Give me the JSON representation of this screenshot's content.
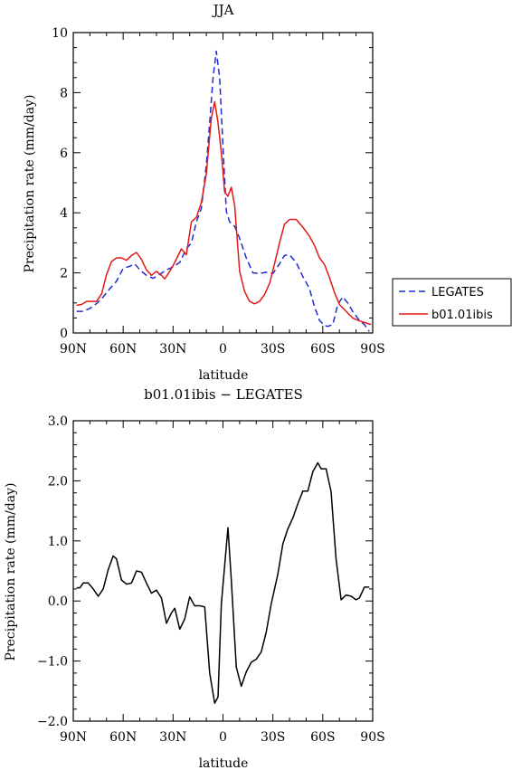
{
  "chart_data": [
    {
      "type": "line",
      "title": "JJA",
      "xlabel": "latitude",
      "ylabel": "Precipitation rate (mm/day)",
      "xlim": [
        90,
        -90
      ],
      "ylim": [
        0,
        10
      ],
      "x_ticks": [
        90,
        60,
        30,
        0,
        -30,
        -60,
        -90
      ],
      "x_tick_labels": [
        "90N",
        "60N",
        "30N",
        "0",
        "30S",
        "60S",
        "90S"
      ],
      "y_ticks": [
        0,
        2,
        4,
        6,
        8,
        10
      ],
      "y_tick_labels": [
        "0",
        "2",
        "4",
        "6",
        "8",
        "10"
      ],
      "legend_position": "right",
      "series": [
        {
          "name": "LEGATES",
          "color": "#1f2bd4",
          "dash": "dashed",
          "points": [
            [
              88,
              0.72
            ],
            [
              84,
              0.72
            ],
            [
              80,
              0.82
            ],
            [
              76,
              0.98
            ],
            [
              72,
              1.2
            ],
            [
              68,
              1.48
            ],
            [
              64,
              1.72
            ],
            [
              60,
              2.15
            ],
            [
              56,
              2.22
            ],
            [
              53,
              2.3
            ],
            [
              50,
              2.1
            ],
            [
              46,
              1.92
            ],
            [
              42,
              1.82
            ],
            [
              38,
              1.95
            ],
            [
              34,
              2.1
            ],
            [
              30,
              2.2
            ],
            [
              26,
              2.35
            ],
            [
              22,
              2.8
            ],
            [
              19,
              3.0
            ],
            [
              16,
              3.7
            ],
            [
              13,
              4.15
            ],
            [
              10,
              5.6
            ],
            [
              8,
              7.0
            ],
            [
              6,
              8.5
            ],
            [
              4,
              9.38
            ],
            [
              2,
              8.5
            ],
            [
              0,
              6.2
            ],
            [
              -2,
              4.05
            ],
            [
              -4,
              3.7
            ],
            [
              -7,
              3.55
            ],
            [
              -10,
              3.15
            ],
            [
              -14,
              2.5
            ],
            [
              -18,
              2.0
            ],
            [
              -22,
              1.98
            ],
            [
              -26,
              2.02
            ],
            [
              -30,
              1.98
            ],
            [
              -34,
              2.3
            ],
            [
              -37,
              2.58
            ],
            [
              -40,
              2.6
            ],
            [
              -44,
              2.35
            ],
            [
              -48,
              1.88
            ],
            [
              -52,
              1.48
            ],
            [
              -55,
              0.88
            ],
            [
              -58,
              0.42
            ],
            [
              -61,
              0.25
            ],
            [
              -63,
              0.22
            ],
            [
              -66,
              0.28
            ],
            [
              -69,
              0.95
            ],
            [
              -72,
              1.2
            ],
            [
              -75,
              1.0
            ],
            [
              -78,
              0.72
            ],
            [
              -82,
              0.42
            ],
            [
              -85,
              0.28
            ],
            [
              -88,
              0.05
            ]
          ]
        },
        {
          "name": "b01.01ibis",
          "color": "#e11919",
          "dash": "solid",
          "points": [
            [
              88,
              0.92
            ],
            [
              85,
              0.95
            ],
            [
              82,
              1.05
            ],
            [
              79,
              1.05
            ],
            [
              76,
              1.05
            ],
            [
              73,
              1.3
            ],
            [
              70,
              1.95
            ],
            [
              67,
              2.38
            ],
            [
              64,
              2.5
            ],
            [
              61,
              2.5
            ],
            [
              58,
              2.42
            ],
            [
              55,
              2.58
            ],
            [
              52,
              2.68
            ],
            [
              49,
              2.45
            ],
            [
              46,
              2.1
            ],
            [
              43,
              1.92
            ],
            [
              40,
              2.05
            ],
            [
              37,
              1.92
            ],
            [
              35,
              1.8
            ],
            [
              32,
              2.05
            ],
            [
              29,
              2.35
            ],
            [
              25,
              2.8
            ],
            [
              22,
              2.6
            ],
            [
              19,
              3.7
            ],
            [
              16,
              3.85
            ],
            [
              13,
              4.35
            ],
            [
              10,
              5.3
            ],
            [
              7,
              7.15
            ],
            [
              5,
              7.7
            ],
            [
              3,
              7.0
            ],
            [
              1,
              6.0
            ],
            [
              -1,
              4.7
            ],
            [
              -3,
              4.55
            ],
            [
              -5,
              4.85
            ],
            [
              -7,
              4.25
            ],
            [
              -10,
              2.05
            ],
            [
              -13,
              1.38
            ],
            [
              -16,
              1.05
            ],
            [
              -19,
              0.97
            ],
            [
              -22,
              1.05
            ],
            [
              -25,
              1.28
            ],
            [
              -28,
              1.65
            ],
            [
              -31,
              2.3
            ],
            [
              -34,
              3.0
            ],
            [
              -37,
              3.62
            ],
            [
              -40,
              3.78
            ],
            [
              -44,
              3.78
            ],
            [
              -48,
              3.52
            ],
            [
              -52,
              3.22
            ],
            [
              -55,
              2.92
            ],
            [
              -58,
              2.5
            ],
            [
              -61,
              2.28
            ],
            [
              -64,
              1.85
            ],
            [
              -67,
              1.35
            ],
            [
              -70,
              0.95
            ],
            [
              -74,
              0.72
            ],
            [
              -78,
              0.5
            ],
            [
              -82,
              0.4
            ],
            [
              -86,
              0.33
            ],
            [
              -89,
              0.28
            ]
          ]
        }
      ]
    },
    {
      "type": "line",
      "title": "b01.01ibis − LEGATES",
      "xlabel": "latitude",
      "ylabel": "Precipitation rate (mm/day)",
      "xlim": [
        90,
        -90
      ],
      "ylim": [
        -2.0,
        3.0
      ],
      "x_ticks": [
        90,
        60,
        30,
        0,
        -30,
        -60,
        -90
      ],
      "x_tick_labels": [
        "90N",
        "60N",
        "30N",
        "0",
        "30S",
        "60S",
        "90S"
      ],
      "y_ticks": [
        -2.0,
        -1.0,
        0.0,
        1.0,
        2.0,
        3.0
      ],
      "y_tick_labels": [
        "−2.0",
        "−1.0",
        "0.0",
        "1.0",
        "2.0",
        "3.0"
      ],
      "series": [
        {
          "color": "#000000",
          "dash": "solid",
          "points": [
            [
              88,
              0.22
            ],
            [
              86,
              0.22
            ],
            [
              84,
              0.3
            ],
            [
              81,
              0.3
            ],
            [
              78,
              0.2
            ],
            [
              75,
              0.08
            ],
            [
              72,
              0.2
            ],
            [
              69,
              0.52
            ],
            [
              66,
              0.75
            ],
            [
              64,
              0.7
            ],
            [
              61,
              0.35
            ],
            [
              58,
              0.28
            ],
            [
              55,
              0.3
            ],
            [
              52,
              0.5
            ],
            [
              49,
              0.48
            ],
            [
              46,
              0.3
            ],
            [
              43,
              0.13
            ],
            [
              40,
              0.18
            ],
            [
              37,
              0.05
            ],
            [
              34,
              -0.37
            ],
            [
              31,
              -0.2
            ],
            [
              29,
              -0.12
            ],
            [
              26,
              -0.47
            ],
            [
              23,
              -0.3
            ],
            [
              20,
              0.07
            ],
            [
              17,
              -0.08
            ],
            [
              14,
              -0.08
            ],
            [
              11,
              -0.1
            ],
            [
              8,
              -1.2
            ],
            [
              5,
              -1.7
            ],
            [
              3,
              -1.6
            ],
            [
              1,
              -0.05
            ],
            [
              -1,
              0.58
            ],
            [
              -3,
              1.22
            ],
            [
              -5,
              0.35
            ],
            [
              -8,
              -1.1
            ],
            [
              -11,
              -1.42
            ],
            [
              -14,
              -1.18
            ],
            [
              -17,
              -1.02
            ],
            [
              -20,
              -0.97
            ],
            [
              -23,
              -0.85
            ],
            [
              -26,
              -0.52
            ],
            [
              -29,
              -0.05
            ],
            [
              -33,
              0.45
            ],
            [
              -36,
              0.95
            ],
            [
              -39,
              1.2
            ],
            [
              -42,
              1.38
            ],
            [
              -45,
              1.62
            ],
            [
              -48,
              1.83
            ],
            [
              -51,
              1.83
            ],
            [
              -54,
              2.15
            ],
            [
              -57,
              2.3
            ],
            [
              -59,
              2.2
            ],
            [
              -62,
              2.2
            ],
            [
              -65,
              1.82
            ],
            [
              -68,
              0.7
            ],
            [
              -71,
              0.02
            ],
            [
              -74,
              0.1
            ],
            [
              -77,
              0.08
            ],
            [
              -80,
              0.02
            ],
            [
              -82,
              0.05
            ],
            [
              -85,
              0.23
            ],
            [
              -88,
              0.23
            ]
          ]
        }
      ]
    }
  ]
}
